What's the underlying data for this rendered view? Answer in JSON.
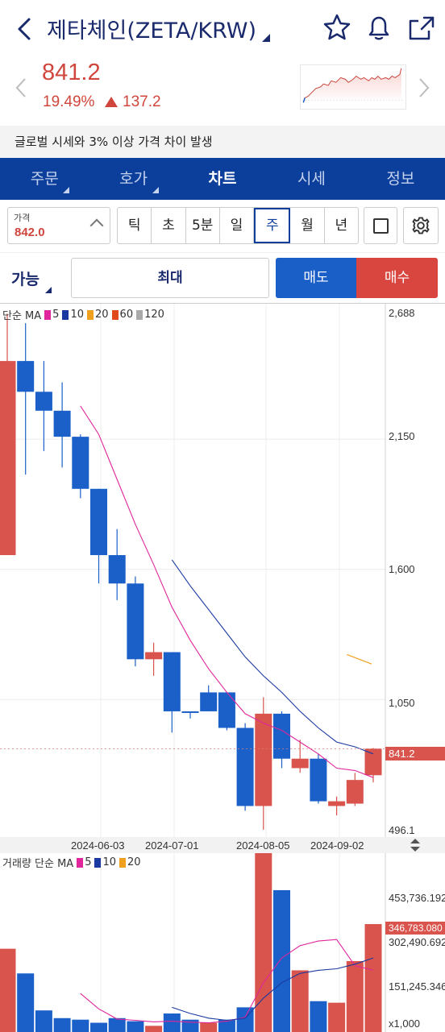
{
  "header": {
    "title": "제타체인(ZETA/KRW)",
    "icons": [
      "back-arrow-icon",
      "star-icon",
      "bell-icon",
      "share-icon"
    ]
  },
  "price": {
    "current": "841.2",
    "change_rate": "19.49%",
    "change_value": "137.2",
    "color_up": "#d0463c"
  },
  "notice": "글로벌 시세와 3% 이상 가격 차이 발생",
  "tabs": [
    {
      "label": "주문",
      "active": false
    },
    {
      "label": "호가",
      "active": false
    },
    {
      "label": "차트",
      "active": true
    },
    {
      "label": "시세",
      "active": false
    },
    {
      "label": "정보",
      "active": false
    }
  ],
  "price_box": {
    "label": "가격",
    "value": "842.0"
  },
  "periods": [
    {
      "label": "틱",
      "selected": false
    },
    {
      "label": "초",
      "selected": false
    },
    {
      "label": "5분",
      "selected": false
    },
    {
      "label": "일",
      "selected": false
    },
    {
      "label": "주",
      "selected": true
    },
    {
      "label": "월",
      "selected": false
    },
    {
      "label": "년",
      "selected": false
    }
  ],
  "order": {
    "avail_label": "가능",
    "max_label": "최대",
    "sell_label": "매도",
    "buy_label": "매수"
  },
  "chart_data": {
    "type": "candlestick",
    "price_legend": {
      "prefix": "단순 MA",
      "items": [
        {
          "label": "5",
          "color": "#e0269b"
        },
        {
          "label": "10",
          "color": "#1a3aa0"
        },
        {
          "label": "20",
          "color": "#f0a020"
        },
        {
          "label": "60",
          "color": "#e04a1a"
        },
        {
          "label": "120",
          "color": "#aaaaaa"
        }
      ]
    },
    "price_axis_labels": [
      "2,688",
      "2,150",
      "1,600",
      "1,050",
      "496.1"
    ],
    "price_ylim": [
      496.1,
      2688
    ],
    "current_price_label": "841.2",
    "date_labels": [
      "2024-06-03",
      "2024-07-01",
      "2024-08-05",
      "2024-09-02"
    ],
    "candles": [
      {
        "o": 1660,
        "c": 2480,
        "h": 2680,
        "l": 1660
      },
      {
        "o": 2480,
        "c": 2350,
        "h": 2640,
        "l": 2000
      },
      {
        "o": 2350,
        "c": 2270,
        "h": 2480,
        "l": 2100
      },
      {
        "o": 2270,
        "c": 2160,
        "h": 2390,
        "l": 2030
      },
      {
        "o": 2160,
        "c": 1940,
        "h": 2170,
        "l": 1900
      },
      {
        "o": 1940,
        "c": 1660,
        "h": 1940,
        "l": 1540
      },
      {
        "o": 1660,
        "c": 1540,
        "h": 1770,
        "l": 1470
      },
      {
        "o": 1540,
        "c": 1220,
        "h": 1570,
        "l": 1190
      },
      {
        "o": 1220,
        "c": 1250,
        "h": 1290,
        "l": 1150
      },
      {
        "o": 1250,
        "c": 1000,
        "h": 1250,
        "l": 910
      },
      {
        "o": 1000,
        "c": 995,
        "h": 1000,
        "l": 970
      },
      {
        "o": 1080,
        "c": 1000,
        "h": 1110,
        "l": 1000
      },
      {
        "o": 1080,
        "c": 930,
        "h": 1080,
        "l": 920
      },
      {
        "o": 930,
        "c": 600,
        "h": 950,
        "l": 580
      },
      {
        "o": 600,
        "c": 990,
        "h": 1060,
        "l": 500
      },
      {
        "o": 990,
        "c": 800,
        "h": 1000,
        "l": 760
      },
      {
        "o": 760,
        "c": 800,
        "h": 880,
        "l": 740
      },
      {
        "o": 800,
        "c": 620,
        "h": 820,
        "l": 610
      },
      {
        "o": 600,
        "c": 620,
        "h": 640,
        "l": 560
      },
      {
        "o": 610,
        "c": 710,
        "h": 740,
        "l": 600
      },
      {
        "o": 730,
        "c": 842,
        "h": 845,
        "l": 700
      }
    ],
    "ma5": [
      null,
      null,
      null,
      null,
      2290,
      2170,
      1980,
      1790,
      1620,
      1440,
      1300,
      1180,
      1080,
      990,
      950,
      920,
      870,
      820,
      760,
      750,
      720
    ],
    "ma10": [
      null,
      null,
      null,
      null,
      null,
      null,
      null,
      null,
      null,
      1640,
      1530,
      1430,
      1330,
      1230,
      1150,
      1080,
      1000,
      930,
      870,
      850,
      820
    ],
    "ma20_fragment": [
      1240,
      1200
    ],
    "volume_legend": {
      "prefix": "거래량 단순 MA",
      "items": [
        {
          "label": "5",
          "color": "#e0269b"
        },
        {
          "label": "10",
          "color": "#1a3aa0"
        },
        {
          "label": "20",
          "color": "#f0a020"
        }
      ]
    },
    "volume_axis_labels": [
      "453,736.192",
      "302,490.692",
      "151,245.346",
      "x1,000"
    ],
    "volume_current_label": "346,783.080",
    "volume_ylim": [
      0,
      580000
    ],
    "volumes": [
      {
        "v": 270000,
        "up": true
      },
      {
        "v": 190000,
        "up": false
      },
      {
        "v": 70000,
        "up": false
      },
      {
        "v": 45000,
        "up": false
      },
      {
        "v": 40000,
        "up": false
      },
      {
        "v": 30000,
        "up": false
      },
      {
        "v": 45000,
        "up": false
      },
      {
        "v": 35000,
        "up": false
      },
      {
        "v": 20000,
        "up": true
      },
      {
        "v": 60000,
        "up": false
      },
      {
        "v": 40000,
        "up": false
      },
      {
        "v": 30000,
        "up": true
      },
      {
        "v": 40000,
        "up": false
      },
      {
        "v": 80000,
        "up": false
      },
      {
        "v": 640000,
        "up": true
      },
      {
        "v": 460000,
        "up": false
      },
      {
        "v": 200000,
        "up": true
      },
      {
        "v": 100000,
        "up": false
      },
      {
        "v": 95000,
        "up": true
      },
      {
        "v": 230000,
        "up": true
      },
      {
        "v": 350000,
        "up": true
      }
    ],
    "vol_ma5": [
      null,
      null,
      null,
      null,
      125000,
      75000,
      42000,
      38000,
      33000,
      35000,
      32000,
      30000,
      35000,
      48000,
      160000,
      240000,
      280000,
      295000,
      300000,
      215000,
      200000
    ],
    "vol_ma10": [
      null,
      null,
      null,
      null,
      null,
      null,
      null,
      null,
      null,
      80000,
      60000,
      45000,
      38000,
      45000,
      110000,
      160000,
      190000,
      200000,
      205000,
      220000,
      240000
    ]
  }
}
